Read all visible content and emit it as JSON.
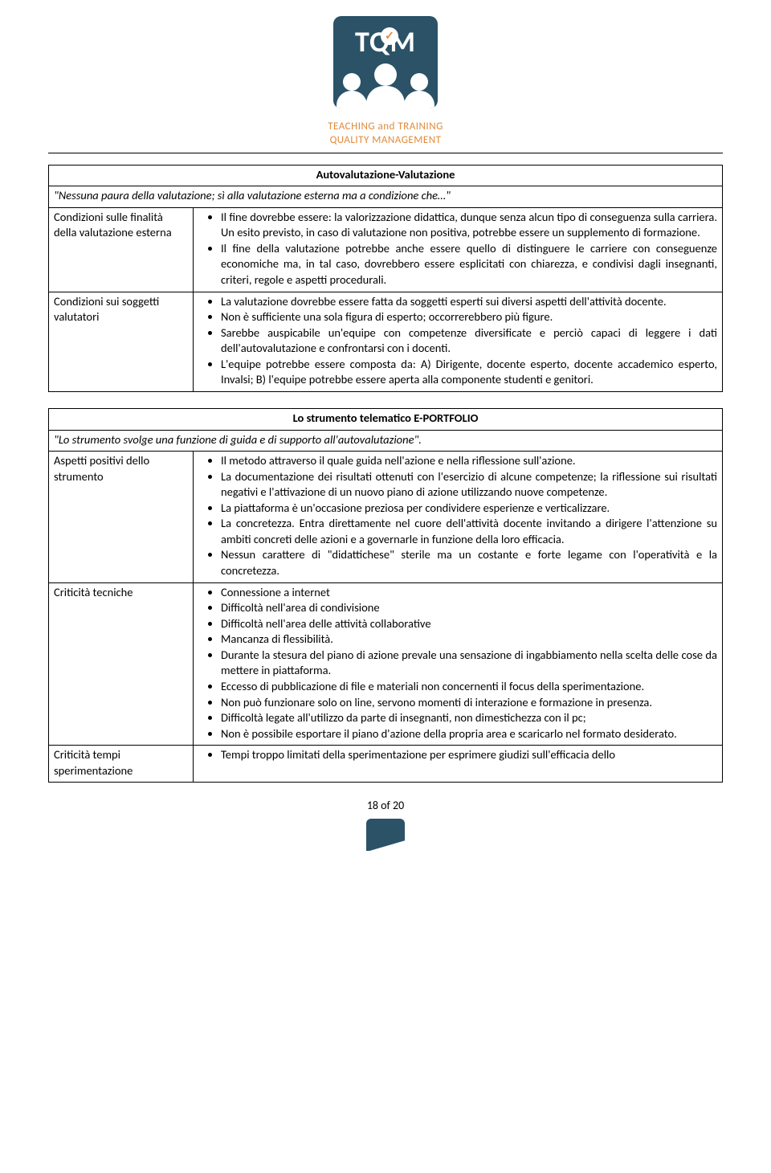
{
  "header": {
    "logo_text": "TQM",
    "tagline_line1": "TEACHING and TRAINING",
    "tagline_line2": "QUALITY MANAGEMENT"
  },
  "table1": {
    "title": "Autovalutazione-Valutazione",
    "quote": "\"Nessuna paura della valutazione; sì alla valutazione esterna ma a condizione che…\"",
    "rows": [
      {
        "label": "Condizioni sulle finalità della valutazione esterna",
        "bullets": [
          "Il fine dovrebbe essere: la valorizzazione didattica, dunque senza alcun tipo di conseguenza sulla carriera. Un esito previsto, in caso di valutazione non positiva, potrebbe essere un supplemento di formazione.",
          "Il fine della valutazione potrebbe anche essere quello di distinguere le carriere con conseguenze economiche ma, in tal caso, dovrebbero essere esplicitati con chiarezza, e condivisi dagli insegnanti, criteri, regole e aspetti procedurali."
        ]
      },
      {
        "label": "Condizioni sui soggetti valutatori",
        "bullets": [
          "La valutazione dovrebbe essere fatta da soggetti esperti sui diversi aspetti dell'attività docente.",
          "Non è sufficiente una sola figura di esperto; occorrerebbero più figure.",
          "Sarebbe auspicabile un'equipe con competenze diversificate e perciò capaci di leggere i dati dell'autovalutazione e confrontarsi con i docenti.",
          "L'equipe potrebbe essere composta da: A) Dirigente, docente esperto, docente accademico esperto, Invalsi; B) l'equipe potrebbe essere aperta alla componente studenti e genitori."
        ]
      }
    ]
  },
  "table2": {
    "title": "Lo strumento telematico E-PORTFOLIO",
    "quote": "\"Lo strumento svolge una funzione di guida e di supporto all'autovalutazione\".",
    "rows": [
      {
        "label": "Aspetti positivi dello strumento",
        "bullets": [
          "Il metodo attraverso il quale guida nell'azione e nella riflessione sull'azione.",
          "La documentazione dei risultati ottenuti con l'esercizio di alcune competenze; la riflessione sui risultati negativi e l'attivazione di un nuovo piano di azione utilizzando nuove competenze.",
          "La piattaforma è un'occasione preziosa per condividere esperienze e verticalizzare.",
          "La concretezza. Entra direttamente nel cuore dell'attività docente invitando a dirigere l'attenzione su ambiti concreti delle azioni e a governarle in funzione della loro efficacia.",
          "Nessun carattere di \"didattichese\" sterile ma un costante e forte legame con l'operatività e la concretezza."
        ]
      },
      {
        "label": "Criticità tecniche",
        "bullets": [
          "Connessione a internet",
          "Difficoltà nell'area di condivisione",
          "Difficoltà nell'area delle attività collaborative",
          "Mancanza di flessibilità.",
          "Durante la stesura del piano di azione prevale una sensazione di ingabbiamento nella scelta delle cose da mettere in piattaforma.",
          "Eccesso di pubblicazione di file e materiali non concernenti il focus della sperimentazione.",
          "Non può funzionare solo on line, servono momenti di interazione e formazione in presenza.",
          "Difficoltà legate all'utilizzo da parte di insegnanti, non dimestichezza con il pc;",
          "Non è possibile esportare il piano d'azione della propria area e scaricarlo nel formato desiderato."
        ]
      },
      {
        "label": "Criticità tempi sperimentazione",
        "bullets": [
          "Tempi troppo limitati della sperimentazione per esprimere giudizi sull'efficacia dello"
        ]
      }
    ]
  },
  "footer": {
    "page": "18 of 20"
  }
}
